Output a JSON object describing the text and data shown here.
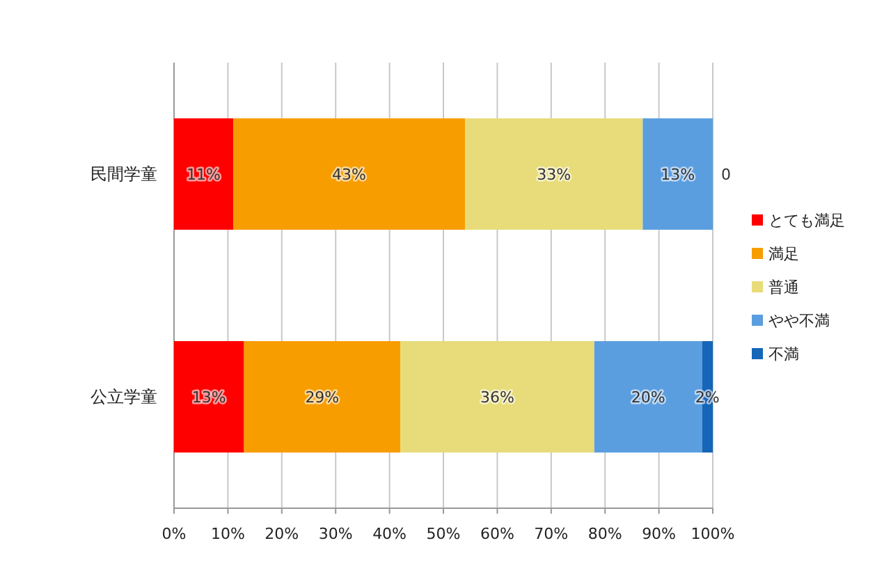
{
  "chart_data": {
    "type": "bar",
    "orientation": "horizontal",
    "stacked": true,
    "categories": [
      "民間学童",
      "公立学童"
    ],
    "series": [
      {
        "name": "とても満足",
        "color": "#ff0000",
        "values": [
          11,
          13
        ],
        "value_labels": [
          "11%",
          "13%"
        ]
      },
      {
        "name": "満足",
        "color": "#f79d00",
        "values": [
          43,
          29
        ],
        "value_labels": [
          "43%",
          "29%"
        ]
      },
      {
        "name": "普通",
        "color": "#e8dc7a",
        "values": [
          33,
          36
        ],
        "value_labels": [
          "33%",
          "36%"
        ]
      },
      {
        "name": "やや不満",
        "color": "#5b9ee0",
        "values": [
          13,
          20
        ],
        "value_labels": [
          "13%",
          "20%"
        ]
      },
      {
        "name": "不満",
        "color": "#1565b8",
        "values": [
          0,
          2
        ],
        "value_labels": [
          "0",
          "2%"
        ]
      }
    ],
    "xlim": [
      0,
      100
    ],
    "xticks": [
      {
        "value": 0,
        "label": "0%"
      },
      {
        "value": 10,
        "label": "10%"
      },
      {
        "value": 20,
        "label": "20%"
      },
      {
        "value": 30,
        "label": "30%"
      },
      {
        "value": 40,
        "label": "40%"
      },
      {
        "value": 50,
        "label": "50%"
      },
      {
        "value": 60,
        "label": "60%"
      },
      {
        "value": 70,
        "label": "70%"
      },
      {
        "value": 80,
        "label": "80%"
      },
      {
        "value": 90,
        "label": "90%"
      },
      {
        "value": 100,
        "label": "100%"
      }
    ],
    "grid": "x",
    "legend": "right"
  }
}
